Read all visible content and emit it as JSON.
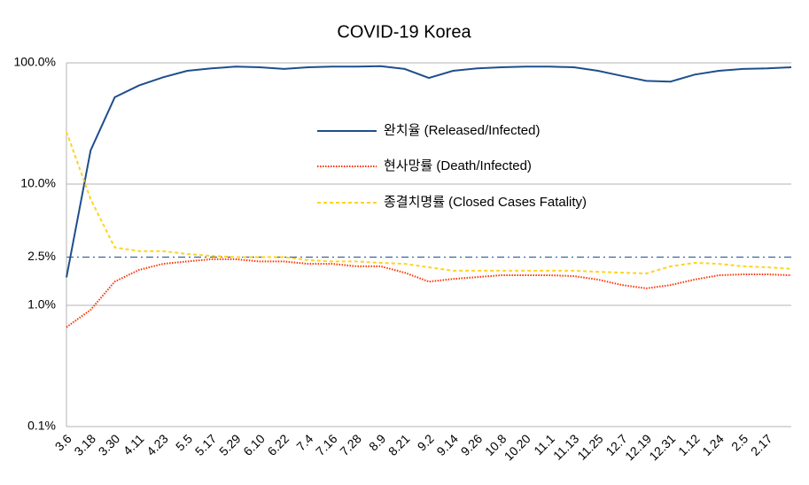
{
  "chart_data": {
    "type": "line",
    "title": "COVID-19 Korea",
    "log_scale": true,
    "grid": true,
    "legend": "center",
    "categories": [
      "3.6",
      "3.18",
      "3.30",
      "4.11",
      "4.23",
      "5.5",
      "5.17",
      "5.29",
      "6.10",
      "6.22",
      "7.4",
      "7.16",
      "7.28",
      "8.9",
      "8.21",
      "9.2",
      "9.14",
      "9.26",
      "10.8",
      "10.20",
      "11.1",
      "11.13",
      "11.25",
      "12.7",
      "12.19",
      "12.31",
      "1.12",
      "1.24",
      "2.5",
      "2.17",
      null
    ],
    "ylim": [
      0.1,
      100
    ],
    "yticks": [
      {
        "value": 0.1,
        "label": "0.1%"
      },
      {
        "value": 1,
        "label": "1.0%"
      },
      {
        "value": 2.5,
        "label": "2.5%",
        "line": "dashdot"
      },
      {
        "value": 10,
        "label": "10.0%"
      },
      {
        "value": 100,
        "label": "100.0%"
      }
    ],
    "series": [
      {
        "name": "완치율 (Released/Infected)",
        "color": "#1f4e8c",
        "dash": "solid",
        "values": [
          1.7,
          19,
          52,
          65,
          76,
          86,
          90,
          93,
          92,
          89,
          92,
          93,
          93,
          94,
          89,
          75,
          86,
          90,
          92,
          93,
          93,
          92,
          86,
          78,
          71,
          70,
          80,
          86,
          89,
          90,
          92
        ]
      },
      {
        "name": "현사망률 (Death/Infected)",
        "color": "#ff3300",
        "dash": "dotted",
        "values": [
          0.66,
          0.92,
          1.57,
          1.96,
          2.2,
          2.3,
          2.4,
          2.4,
          2.3,
          2.3,
          2.2,
          2.2,
          2.1,
          2.1,
          1.86,
          1.57,
          1.65,
          1.71,
          1.77,
          1.77,
          1.77,
          1.74,
          1.63,
          1.47,
          1.38,
          1.47,
          1.63,
          1.77,
          1.8,
          1.8,
          1.77
        ]
      },
      {
        "name": "종결치명률 (Closed Cases Fatality)",
        "color": "#ffd320",
        "dash": "dashed",
        "values": [
          27,
          7.5,
          3.0,
          2.8,
          2.8,
          2.65,
          2.56,
          2.5,
          2.5,
          2.5,
          2.36,
          2.3,
          2.3,
          2.24,
          2.2,
          2.06,
          1.93,
          1.93,
          1.93,
          1.93,
          1.93,
          1.93,
          1.89,
          1.86,
          1.83,
          2.1,
          2.24,
          2.2,
          2.1,
          2.06,
          2.0
        ]
      }
    ]
  }
}
